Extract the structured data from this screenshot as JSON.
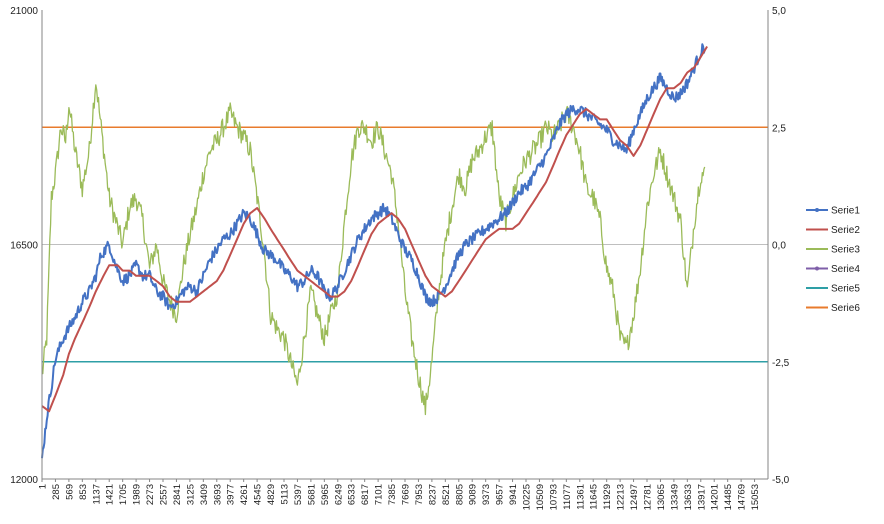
{
  "chart_data": {
    "type": "line",
    "title": "",
    "xlabel": "",
    "ylabel": "",
    "y_left": {
      "min": 12000,
      "max": 21000,
      "ticks": [
        12000,
        16500,
        21000
      ],
      "tick_labels": [
        "12000",
        "16500",
        "21000"
      ]
    },
    "y_right": {
      "min": -5.0,
      "max": 5.0,
      "ticks": [
        -5.0,
        -2.5,
        0.0,
        2.5,
        5.0
      ],
      "tick_labels": [
        "-5,0",
        "-2,5",
        "0,0",
        "2,5",
        "5,0"
      ]
    },
    "x_range": [
      1,
      15337
    ],
    "x_ticks": [
      1,
      285,
      569,
      853,
      1137,
      1421,
      1705,
      1989,
      2273,
      2557,
      2841,
      3125,
      3409,
      3693,
      3977,
      4261,
      4545,
      4829,
      5113,
      5397,
      5681,
      5965,
      6249,
      6533,
      6817,
      7101,
      7385,
      7669,
      7953,
      8237,
      8521,
      8805,
      9089,
      9373,
      9657,
      9941,
      10225,
      10509,
      10793,
      11077,
      11361,
      11645,
      11929,
      12213,
      12497,
      12781,
      13065,
      13349,
      13633,
      13917,
      14201,
      14485,
      14769,
      15053
    ],
    "grid": "horizontal",
    "legend_position": "right",
    "series": [
      {
        "name": "Serie1",
        "axis": "left",
        "color": "#4472c4",
        "marker": true,
        "x": [
          1,
          120,
          285,
          450,
          569,
          700,
          853,
          1000,
          1137,
          1250,
          1421,
          1560,
          1705,
          1850,
          1989,
          2130,
          2273,
          2420,
          2557,
          2700,
          2841,
          2980,
          3125,
          3270,
          3409,
          3550,
          3693,
          3830,
          3977,
          4120,
          4261,
          4400,
          4545,
          4680,
          4829,
          4970,
          5113,
          5250,
          5397,
          5540,
          5681,
          5820,
          5965,
          6100,
          6249,
          6390,
          6533,
          6680,
          6817,
          6960,
          7101,
          7240,
          7385,
          7520,
          7669,
          7810,
          7953,
          8100,
          8237,
          8380,
          8521,
          8660,
          8805,
          8950,
          9089,
          9230,
          9373,
          9510,
          9657,
          9800,
          9941,
          10080,
          10225,
          10370,
          10509,
          10650,
          10793,
          10930,
          11077,
          11220,
          11361,
          11500,
          11645,
          11790,
          11929,
          12070,
          12213,
          12350,
          12497,
          12640,
          12781,
          12920,
          13065,
          13200,
          13349,
          13490,
          13633,
          13780,
          13917,
          14000
        ],
        "values": [
          12400,
          13300,
          14300,
          14700,
          14900,
          15100,
          15400,
          15600,
          15900,
          16300,
          16500,
          16100,
          15800,
          15900,
          16100,
          15900,
          15900,
          15600,
          15500,
          15300,
          15400,
          15600,
          15700,
          15600,
          15900,
          16200,
          16400,
          16600,
          16700,
          16900,
          17100,
          17000,
          16700,
          16400,
          16300,
          16200,
          16000,
          15900,
          15700,
          15800,
          16000,
          15900,
          15600,
          15500,
          15700,
          16000,
          16300,
          16600,
          16800,
          17000,
          17100,
          17200,
          17000,
          16700,
          16400,
          16200,
          15900,
          15500,
          15400,
          15500,
          15700,
          16000,
          16300,
          16500,
          16600,
          16700,
          16800,
          16900,
          17000,
          17100,
          17300,
          17500,
          17600,
          17800,
          18000,
          18200,
          18500,
          18800,
          19000,
          19100,
          19100,
          19000,
          18900,
          18800,
          18700,
          18500,
          18400,
          18300,
          18700,
          19000,
          19300,
          19500,
          19700,
          19500,
          19300,
          19400,
          19600,
          19900,
          20200,
          20300
        ]
      },
      {
        "name": "Serie2",
        "axis": "left",
        "color": "#c0504d",
        "marker": false,
        "x": [
          1,
          150,
          285,
          450,
          569,
          700,
          853,
          1000,
          1137,
          1300,
          1421,
          1600,
          1705,
          1850,
          1989,
          2150,
          2273,
          2420,
          2557,
          2700,
          2841,
          3000,
          3125,
          3270,
          3409,
          3550,
          3693,
          3830,
          3977,
          4120,
          4261,
          4400,
          4545,
          4700,
          4829,
          4970,
          5113,
          5250,
          5397,
          5540,
          5681,
          5820,
          5965,
          6100,
          6249,
          6390,
          6533,
          6680,
          6817,
          6960,
          7101,
          7240,
          7385,
          7520,
          7669,
          7810,
          7953,
          8100,
          8237,
          8380,
          8521,
          8660,
          8805,
          8950,
          9089,
          9230,
          9373,
          9510,
          9657,
          9800,
          9941,
          10080,
          10225,
          10370,
          10509,
          10650,
          10793,
          10930,
          11077,
          11220,
          11361,
          11500,
          11645,
          11790,
          11929,
          12070,
          12213,
          12350,
          12497,
          12640,
          12781,
          12920,
          13065,
          13200,
          13349,
          13490,
          13633,
          13780,
          13917,
          14050
        ],
        "values": [
          13400,
          13300,
          13600,
          14000,
          14400,
          14700,
          15000,
          15300,
          15600,
          15900,
          16100,
          16100,
          16000,
          16000,
          15900,
          15900,
          15900,
          15800,
          15700,
          15500,
          15400,
          15400,
          15400,
          15500,
          15600,
          15700,
          15800,
          16000,
          16300,
          16600,
          16900,
          17100,
          17200,
          17000,
          16800,
          16600,
          16400,
          16200,
          16000,
          15900,
          15800,
          15700,
          15600,
          15500,
          15500,
          15600,
          15800,
          16100,
          16400,
          16700,
          16900,
          17000,
          17100,
          17000,
          16800,
          16500,
          16200,
          15900,
          15700,
          15600,
          15500,
          15600,
          15800,
          16000,
          16200,
          16400,
          16600,
          16700,
          16800,
          16800,
          16800,
          16900,
          17100,
          17300,
          17500,
          17700,
          18000,
          18300,
          18600,
          18800,
          19000,
          19100,
          19000,
          18900,
          18900,
          18700,
          18500,
          18400,
          18200,
          18400,
          18700,
          19000,
          19300,
          19500,
          19500,
          19600,
          19800,
          19900,
          20100,
          20300
        ]
      },
      {
        "name": "Serie3",
        "axis": "right",
        "color": "#9bbb59",
        "marker": false,
        "x": [
          1,
          100,
          200,
          285,
          400,
          500,
          569,
          700,
          853,
          1000,
          1137,
          1250,
          1421,
          1560,
          1705,
          1850,
          1989,
          2130,
          2273,
          2420,
          2557,
          2700,
          2841,
          2980,
          3125,
          3270,
          3409,
          3550,
          3693,
          3830,
          3977,
          4120,
          4261,
          4400,
          4545,
          4680,
          4829,
          4970,
          5113,
          5250,
          5397,
          5540,
          5681,
          5820,
          5965,
          6100,
          6249,
          6390,
          6533,
          6680,
          6817,
          6960,
          7101,
          7240,
          7385,
          7520,
          7669,
          7810,
          7953,
          8100,
          8237,
          8380,
          8521,
          8660,
          8805,
          8950,
          9089,
          9230,
          9373,
          9510,
          9657,
          9800,
          9941,
          10080,
          10225,
          10370,
          10509,
          10650,
          10793,
          10930,
          11077,
          11220,
          11361,
          11500,
          11645,
          11790,
          11929,
          12070,
          12213,
          12350,
          12497,
          12640,
          12781,
          12920,
          13065,
          13200,
          13349,
          13490,
          13633,
          13780,
          13917,
          14000
        ],
        "values": [
          -2.8,
          -2.0,
          1.0,
          1.5,
          2.5,
          2.2,
          3.0,
          2.0,
          1.2,
          2.0,
          3.5,
          2.5,
          1.0,
          0.5,
          0.0,
          0.8,
          1.0,
          0.5,
          -0.5,
          0.0,
          -0.8,
          -1.2,
          -1.5,
          -0.5,
          0.2,
          0.8,
          1.5,
          2.0,
          2.2,
          2.5,
          2.8,
          2.5,
          2.3,
          2.0,
          1.0,
          0.0,
          -1.5,
          -1.8,
          -2.0,
          -2.5,
          -3.0,
          -2.0,
          -1.0,
          -1.5,
          -2.0,
          -1.5,
          -1.0,
          0.5,
          1.8,
          2.5,
          2.5,
          2.2,
          2.5,
          2.0,
          1.5,
          0.5,
          -1.0,
          -2.0,
          -2.8,
          -3.5,
          -2.5,
          -1.0,
          0.0,
          0.8,
          1.5,
          1.2,
          1.8,
          2.0,
          2.3,
          2.5,
          1.0,
          0.5,
          1.0,
          1.5,
          1.8,
          2.0,
          2.2,
          2.5,
          2.3,
          2.5,
          2.8,
          2.5,
          2.0,
          1.2,
          1.0,
          0.5,
          -0.5,
          -1.0,
          -2.0,
          -2.2,
          -1.5,
          -0.5,
          0.8,
          1.5,
          2.0,
          1.5,
          1.0,
          0.5,
          -1.0,
          0.5,
          1.5,
          1.5
        ]
      },
      {
        "name": "Serie4",
        "axis": "right",
        "color": "#7f5fa9",
        "marker": true,
        "x": [],
        "values": []
      },
      {
        "name": "Serie5",
        "axis": "right",
        "color": "#2e9fa6",
        "marker": false,
        "x": [
          1,
          15337
        ],
        "values": [
          -2.5,
          -2.5
        ]
      },
      {
        "name": "Serie6",
        "axis": "right",
        "color": "#e87b2c",
        "marker": false,
        "x": [
          1,
          15337
        ],
        "values": [
          2.5,
          2.5
        ]
      }
    ]
  }
}
